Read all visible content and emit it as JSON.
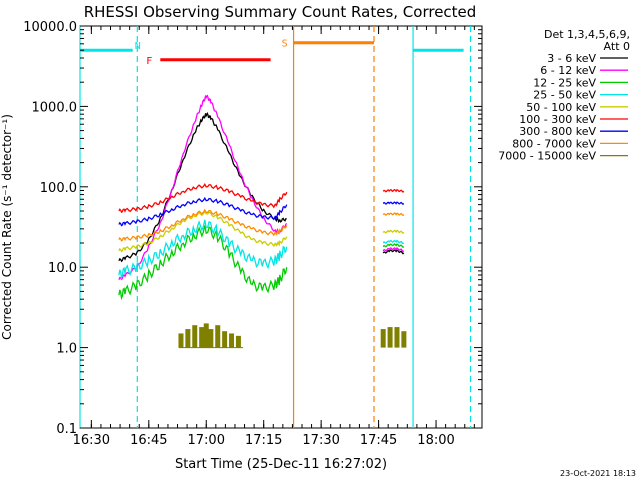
{
  "chart_data": {
    "type": "line",
    "title": "RHESSI Observing Summary Count Rates, Corrected",
    "xlabel": "Start Time (25-Dec-11 16:27:02)",
    "ylabel": "Corrected Count Rate (s⁻¹ detector⁻¹)",
    "y_scale": "log",
    "ylim": [
      0.1,
      10000.0
    ],
    "xlim": [
      16.4506,
      18.2
    ],
    "x_ticks": [
      {
        "value": 16.5,
        "label": "16:30"
      },
      {
        "value": 16.75,
        "label": "16:45"
      },
      {
        "value": 17.0,
        "label": "17:00"
      },
      {
        "value": 17.25,
        "label": "17:15"
      },
      {
        "value": 17.5,
        "label": "17:30"
      },
      {
        "value": 17.75,
        "label": "17:45"
      },
      {
        "value": 18.0,
        "label": "18:00"
      }
    ],
    "y_ticks": [
      {
        "value": 0.1,
        "label": "0.1"
      },
      {
        "value": 1,
        "label": "1.0"
      },
      {
        "value": 10,
        "label": "10.0"
      },
      {
        "value": 100,
        "label": "100.0"
      },
      {
        "value": 1000,
        "label": "1000.0"
      },
      {
        "value": 10000,
        "label": "10000.0"
      }
    ],
    "legend_header": [
      "Det 1,3,4,5,6,9,",
      "Att 0"
    ],
    "legend_position": "right",
    "timestamp": "23-Oct-2021 18:13",
    "series": [
      {
        "name": "3 - 6 keV",
        "color": "#000000",
        "x": [
          16.62,
          16.65,
          16.7,
          16.75,
          16.8,
          16.85,
          16.9,
          16.95,
          16.98,
          17.0,
          17.02,
          17.05,
          17.1,
          17.15,
          17.2,
          17.25,
          17.3,
          17.32,
          17.35
        ],
        "y": [
          12,
          13,
          15,
          22,
          40,
          90,
          220,
          480,
          680,
          800,
          720,
          520,
          260,
          130,
          75,
          50,
          40,
          38,
          40
        ],
        "x2": [
          17.77,
          17.8,
          17.83,
          17.86
        ],
        "y2": [
          15,
          16,
          16,
          15
        ]
      },
      {
        "name": "6 - 12 keV",
        "color": "#ff00ff",
        "x": [
          16.62,
          16.65,
          16.7,
          16.75,
          16.8,
          16.85,
          16.9,
          16.95,
          16.98,
          17.0,
          17.02,
          17.05,
          17.1,
          17.15,
          17.2,
          17.25,
          17.3,
          17.32,
          17.35
        ],
        "y": [
          7,
          8,
          10,
          18,
          35,
          90,
          260,
          650,
          1050,
          1350,
          1150,
          750,
          330,
          140,
          70,
          40,
          28,
          28,
          35
        ],
        "x2": [
          17.77,
          17.8,
          17.83,
          17.86
        ],
        "y2": [
          16,
          17,
          17,
          16
        ]
      },
      {
        "name": "12 - 25 keV",
        "color": "#00cc00",
        "x": [
          16.62,
          16.65,
          16.7,
          16.75,
          16.8,
          16.85,
          16.9,
          16.95,
          17.0,
          17.05,
          17.1,
          17.15,
          17.2,
          17.25,
          17.3,
          17.32,
          17.35
        ],
        "y": [
          4.5,
          5,
          6,
          8,
          11,
          15,
          20,
          25,
          30,
          24,
          15,
          9,
          6,
          5.5,
          6,
          7,
          10
        ],
        "x2": [
          17.77,
          17.8,
          17.83,
          17.86
        ],
        "y2": [
          18,
          19,
          19,
          18
        ]
      },
      {
        "name": "25 - 50 keV",
        "color": "#00e5e5",
        "x": [
          16.62,
          16.65,
          16.7,
          16.75,
          16.8,
          16.85,
          16.9,
          16.95,
          17.0,
          17.05,
          17.1,
          17.15,
          17.2,
          17.25,
          17.3,
          17.32,
          17.35
        ],
        "y": [
          8,
          9,
          10,
          12,
          15,
          20,
          25,
          30,
          35,
          28,
          20,
          15,
          12,
          11,
          12,
          14,
          18
        ],
        "x2": [
          17.77,
          17.8,
          17.83,
          17.86
        ],
        "y2": [
          20,
          21,
          21,
          20
        ]
      },
      {
        "name": "50 - 100 keV",
        "color": "#cccc00",
        "x": [
          16.62,
          16.65,
          16.7,
          16.75,
          16.8,
          16.85,
          16.9,
          16.95,
          17.0,
          17.05,
          17.1,
          17.15,
          17.2,
          17.25,
          17.3,
          17.32,
          17.35
        ],
        "y": [
          16,
          17,
          18,
          20,
          24,
          30,
          38,
          44,
          48,
          42,
          34,
          27,
          22,
          20,
          19,
          20,
          24
        ],
        "x2": [
          17.77,
          17.8,
          17.83,
          17.86
        ],
        "y2": [
          27,
          28,
          28,
          27
        ]
      },
      {
        "name": "100 - 300 keV",
        "color": "#ff0000",
        "x": [
          16.62,
          16.65,
          16.7,
          16.75,
          16.8,
          16.85,
          16.9,
          16.95,
          17.0,
          17.05,
          17.1,
          17.15,
          17.2,
          17.25,
          17.3,
          17.32,
          17.35
        ],
        "y": [
          50,
          51,
          53,
          57,
          64,
          75,
          88,
          98,
          104,
          98,
          88,
          76,
          66,
          60,
          58,
          70,
          86
        ],
        "x2": [
          17.77,
          17.8,
          17.83,
          17.86
        ],
        "y2": [
          88,
          90,
          90,
          88
        ]
      },
      {
        "name": "300 - 800 keV",
        "color": "#0000ff",
        "x": [
          16.62,
          16.65,
          16.7,
          16.75,
          16.8,
          16.85,
          16.9,
          16.95,
          17.0,
          17.05,
          17.1,
          17.15,
          17.2,
          17.25,
          17.3,
          17.32,
          17.35
        ],
        "y": [
          34,
          35,
          37,
          40,
          45,
          52,
          60,
          66,
          70,
          66,
          59,
          51,
          45,
          42,
          41,
          48,
          60
        ],
        "x2": [
          17.77,
          17.8,
          17.83,
          17.86
        ],
        "y2": [
          62,
          63,
          63,
          62
        ]
      },
      {
        "name": "800 - 7000 keV",
        "color": "#ff8c00",
        "x": [
          16.62,
          16.65,
          16.7,
          16.75,
          16.8,
          16.85,
          16.9,
          16.95,
          17.0,
          17.05,
          17.1,
          17.15,
          17.2,
          17.25,
          17.3,
          17.32,
          17.35
        ],
        "y": [
          22,
          22.5,
          23.5,
          25,
          28,
          33,
          40,
          46,
          50,
          46,
          40,
          34,
          30,
          27,
          26,
          28,
          33
        ],
        "x2": [
          17.77,
          17.8,
          17.83,
          17.86
        ],
        "y2": [
          45,
          46,
          46,
          45
        ]
      },
      {
        "name": "7000 - 15000 keV",
        "color": "#808000",
        "x": [
          16.89,
          16.92,
          16.95,
          16.98,
          17.0,
          17.02,
          17.05,
          17.08,
          17.11,
          17.14
        ],
        "y": [
          1.5,
          1.7,
          1.9,
          1.8,
          2.0,
          1.7,
          1.9,
          1.6,
          1.5,
          1.4
        ],
        "x2": [
          17.77,
          17.8,
          17.83,
          17.86
        ],
        "y2": [
          1.7,
          1.8,
          1.8,
          1.6
        ]
      }
    ],
    "flags": [
      {
        "label": "F",
        "color": "#ff0000",
        "x_start": 16.8,
        "x_end": 17.28,
        "y": 3800
      },
      {
        "label": "S",
        "color": "#ff7f00",
        "x_start": 17.38,
        "x_end": 17.73,
        "y": 6200
      },
      {
        "label": "N",
        "color": "#00e5e5",
        "x_start": 16.4506,
        "x_end": 16.68,
        "y": 5000
      },
      {
        "label": "",
        "color": "#00e5e5",
        "x_start": 17.9,
        "x_end": 18.12,
        "y": 5000
      }
    ],
    "vertical_markers": [
      {
        "x": 16.4506,
        "color": "#00e5e5",
        "style": "solid"
      },
      {
        "x": 16.7,
        "color": "#00e5e5",
        "style": "dashed"
      },
      {
        "x": 17.38,
        "color": "#ff7f00",
        "style": "solid"
      },
      {
        "x": 17.73,
        "color": "#ff7f00",
        "style": "dashed"
      },
      {
        "x": 17.9,
        "color": "#00e5e5",
        "style": "solid"
      },
      {
        "x": 18.15,
        "color": "#00e5e5",
        "style": "dashed"
      }
    ]
  }
}
